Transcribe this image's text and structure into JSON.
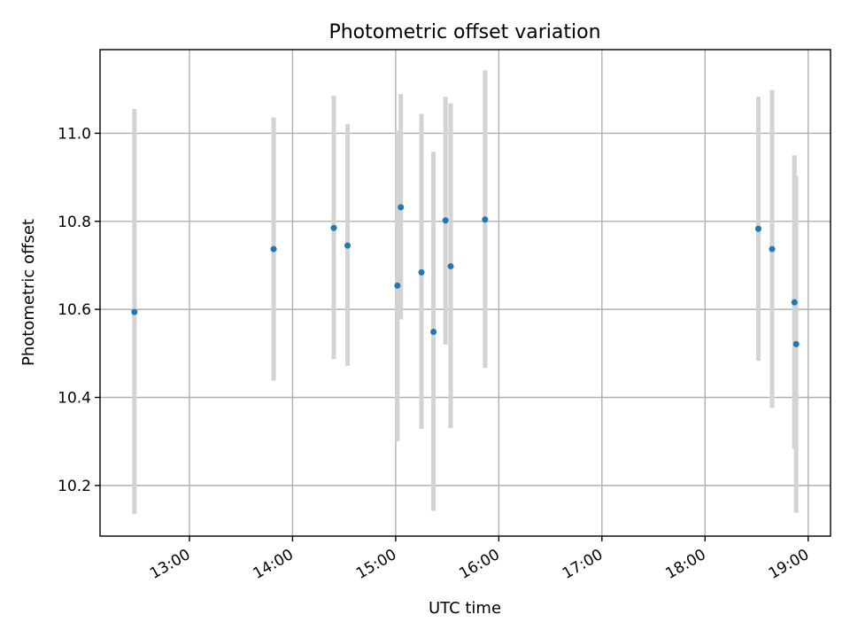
{
  "chart_data": {
    "type": "scatter",
    "title": "Photometric offset variation",
    "xlabel": "UTC time",
    "ylabel": "Photometric offset",
    "x_unit": "UTC time of day",
    "xlim": [
      "12:08",
      "19:13"
    ],
    "ylim": [
      10.085,
      11.19
    ],
    "x_ticks": [
      "13:00",
      "14:00",
      "15:00",
      "16:00",
      "17:00",
      "18:00",
      "19:00"
    ],
    "y_ticks": [
      "10.2",
      "10.4",
      "10.6",
      "10.8",
      "11.0"
    ],
    "grid": true,
    "marker_color": "#1f77b4",
    "errorbar_color": "#d3d3d3",
    "points": [
      {
        "time": "12:28",
        "y": 10.594,
        "ylow": 10.135,
        "yhigh": 11.055
      },
      {
        "time": "13:49",
        "y": 10.737,
        "ylow": 10.438,
        "yhigh": 11.036
      },
      {
        "time": "14:24",
        "y": 10.785,
        "ylow": 10.487,
        "yhigh": 11.085
      },
      {
        "time": "14:32",
        "y": 10.745,
        "ylow": 10.472,
        "yhigh": 11.021
      },
      {
        "time": "15:01",
        "y": 10.654,
        "ylow": 10.3,
        "yhigh": 11.006
      },
      {
        "time": "15:03",
        "y": 10.832,
        "ylow": 10.577,
        "yhigh": 11.089
      },
      {
        "time": "15:15",
        "y": 10.684,
        "ylow": 10.328,
        "yhigh": 11.044
      },
      {
        "time": "15:22",
        "y": 10.549,
        "ylow": 10.142,
        "yhigh": 10.958
      },
      {
        "time": "15:29",
        "y": 10.802,
        "ylow": 10.52,
        "yhigh": 11.083
      },
      {
        "time": "15:32",
        "y": 10.698,
        "ylow": 10.33,
        "yhigh": 11.068
      },
      {
        "time": "15:52",
        "y": 10.804,
        "ylow": 10.467,
        "yhigh": 11.143
      },
      {
        "time": "18:31",
        "y": 10.783,
        "ylow": 10.483,
        "yhigh": 11.083
      },
      {
        "time": "18:39",
        "y": 10.737,
        "ylow": 10.376,
        "yhigh": 11.098
      },
      {
        "time": "18:52",
        "y": 10.616,
        "ylow": 10.283,
        "yhigh": 10.95
      },
      {
        "time": "18:53",
        "y": 10.521,
        "ylow": 10.138,
        "yhigh": 10.903
      }
    ]
  }
}
